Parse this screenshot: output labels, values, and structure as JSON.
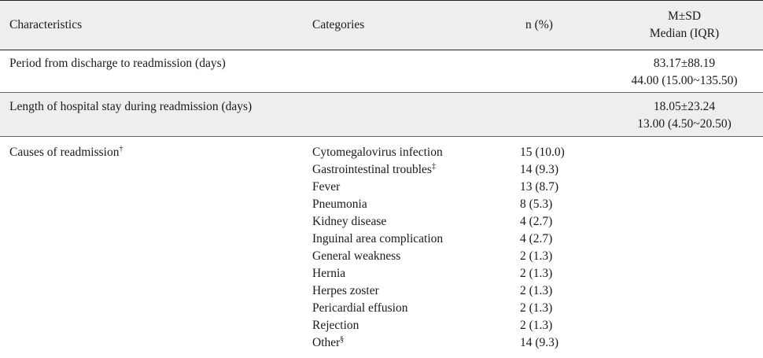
{
  "header": {
    "characteristics": "Characteristics",
    "categories": "Categories",
    "n_percent": "n (%)",
    "stat_line1": "M±SD",
    "stat_line2": "Median (IQR)"
  },
  "rows": {
    "period": {
      "label": "Period from discharge to readmission (days)",
      "mean_sd": "83.17±88.19",
      "median_iqr": "44.00 (15.00~135.50)"
    },
    "length": {
      "label": "Length of hospital stay during readmission (days)",
      "mean_sd": "18.05±23.24",
      "median_iqr": "13.00 (4.50~20.50)"
    },
    "causes": {
      "label": "Causes of readmission",
      "label_mark": "†",
      "items": [
        {
          "category": "Cytomegalovirus infection",
          "mark": "",
          "n": "15 (10.0)"
        },
        {
          "category": "Gastrointestinal troubles",
          "mark": "‡",
          "n": "14 (9.3)"
        },
        {
          "category": "Fever",
          "mark": "",
          "n": "13 (8.7)"
        },
        {
          "category": "Pneumonia",
          "mark": "",
          "n": "8 (5.3)"
        },
        {
          "category": "Kidney disease",
          "mark": "",
          "n": "4 (2.7)"
        },
        {
          "category": "Inguinal area complication",
          "mark": "",
          "n": "4 (2.7)"
        },
        {
          "category": "General weakness",
          "mark": "",
          "n": "2 (1.3)"
        },
        {
          "category": "Hernia",
          "mark": "",
          "n": "2 (1.3)"
        },
        {
          "category": "Herpes zoster",
          "mark": "",
          "n": "2 (1.3)"
        },
        {
          "category": "Pericardial effusion",
          "mark": "",
          "n": "2 (1.3)"
        },
        {
          "category": "Rejection",
          "mark": "",
          "n": "2 (1.3)"
        },
        {
          "category": "Other",
          "mark": "§",
          "n": "14 (9.3)"
        }
      ]
    }
  }
}
